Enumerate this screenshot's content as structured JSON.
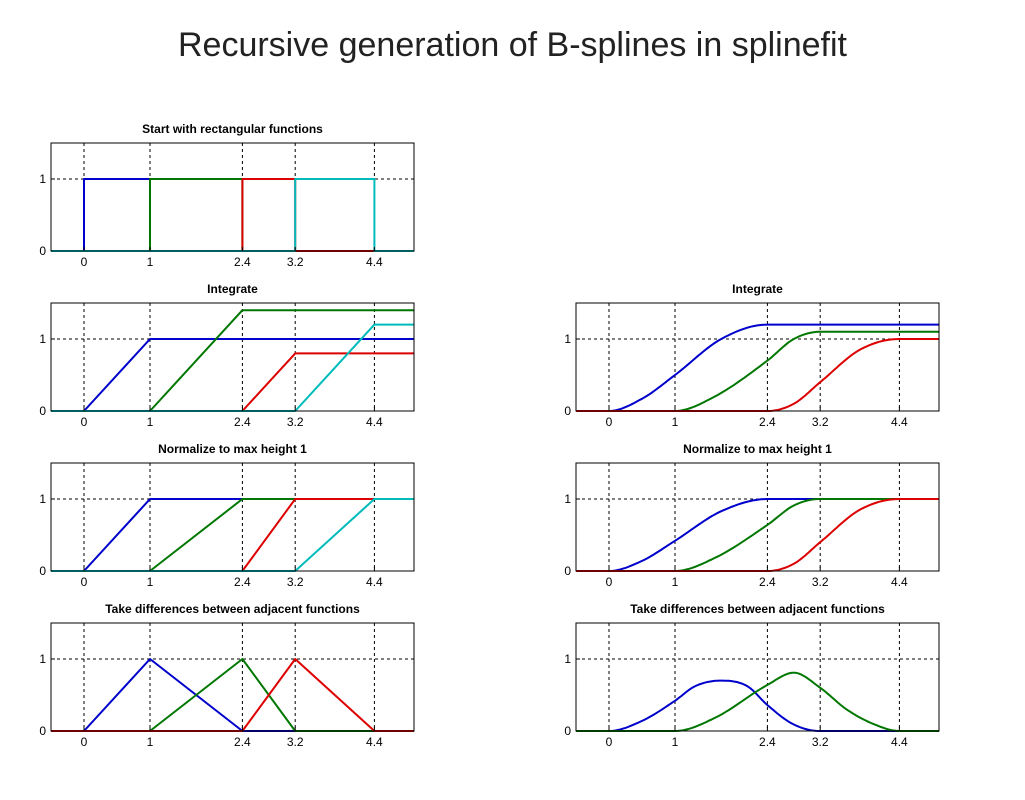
{
  "title": "Recursive generation of B-splines in splinefit",
  "colors": {
    "blue": "#0000cc",
    "green": "#007700",
    "red": "#dd0000",
    "cyan": "#00bbbb",
    "grid": "#000000"
  },
  "chart_data": [
    {
      "title": "Start with rectangular functions",
      "type": "line",
      "xlim": [
        -0.5,
        5.0
      ],
      "ylim": [
        0,
        1.5
      ],
      "xticks": [
        0,
        1,
        2.4,
        3.2,
        4.4
      ],
      "xtick_labels": [
        "0",
        "1",
        "2.4",
        "3.2",
        "4.4"
      ],
      "yticks": [
        0,
        1
      ],
      "ytick_labels": [
        "0",
        "1"
      ],
      "grid": true,
      "series": [
        {
          "color": "#0000cc",
          "x": [
            -0.5,
            0,
            0,
            1,
            1,
            5.0
          ],
          "y": [
            0,
            0,
            1,
            1,
            0,
            0
          ]
        },
        {
          "color": "#007700",
          "x": [
            -0.5,
            1,
            1,
            2.4,
            2.4,
            5.0
          ],
          "y": [
            0,
            0,
            1,
            1,
            0,
            0
          ]
        },
        {
          "color": "#dd0000",
          "x": [
            -0.5,
            2.4,
            2.4,
            3.2,
            3.2,
            5.0
          ],
          "y": [
            0,
            0,
            1,
            1,
            0,
            0
          ]
        },
        {
          "color": "#00bbbb",
          "x": [
            -0.5,
            3.2,
            3.2,
            4.4,
            4.4,
            5.0
          ],
          "y": [
            0,
            0,
            1,
            1,
            0,
            0
          ]
        }
      ]
    },
    {
      "title": "Integrate",
      "type": "line",
      "xlim": [
        -0.5,
        5.0
      ],
      "ylim": [
        0,
        1.5
      ],
      "xticks": [
        0,
        1,
        2.4,
        3.2,
        4.4
      ],
      "xtick_labels": [
        "0",
        "1",
        "2.4",
        "3.2",
        "4.4"
      ],
      "yticks": [
        0,
        1
      ],
      "ytick_labels": [
        "0",
        "1"
      ],
      "grid": true,
      "series": [
        {
          "color": "#0000cc",
          "x": [
            -0.5,
            0,
            1,
            5.0
          ],
          "y": [
            0,
            0,
            1,
            1
          ]
        },
        {
          "color": "#007700",
          "x": [
            -0.5,
            1,
            2.4,
            5.0
          ],
          "y": [
            0,
            0,
            1.4,
            1.4
          ]
        },
        {
          "color": "#dd0000",
          "x": [
            -0.5,
            2.4,
            3.2,
            5.0
          ],
          "y": [
            0,
            0,
            0.8,
            0.8
          ]
        },
        {
          "color": "#00bbbb",
          "x": [
            -0.5,
            3.2,
            4.4,
            5.0
          ],
          "y": [
            0,
            0,
            1.2,
            1.2
          ]
        }
      ]
    },
    {
      "title": "Normalize to max height 1",
      "type": "line",
      "xlim": [
        -0.5,
        5.0
      ],
      "ylim": [
        0,
        1.5
      ],
      "xticks": [
        0,
        1,
        2.4,
        3.2,
        4.4
      ],
      "xtick_labels": [
        "0",
        "1",
        "2.4",
        "3.2",
        "4.4"
      ],
      "yticks": [
        0,
        1
      ],
      "ytick_labels": [
        "0",
        "1"
      ],
      "grid": true,
      "series": [
        {
          "color": "#0000cc",
          "x": [
            -0.5,
            0,
            1,
            5.0
          ],
          "y": [
            0,
            0,
            1,
            1
          ]
        },
        {
          "color": "#007700",
          "x": [
            -0.5,
            1,
            2.4,
            5.0
          ],
          "y": [
            0,
            0,
            1,
            1
          ]
        },
        {
          "color": "#dd0000",
          "x": [
            -0.5,
            2.4,
            3.2,
            5.0
          ],
          "y": [
            0,
            0,
            1,
            1
          ]
        },
        {
          "color": "#00bbbb",
          "x": [
            -0.5,
            3.2,
            4.4,
            5.0
          ],
          "y": [
            0,
            0,
            1,
            1
          ]
        }
      ]
    },
    {
      "title": "Take differences between adjacent functions",
      "type": "line",
      "xlim": [
        -0.5,
        5.0
      ],
      "ylim": [
        0,
        1.5
      ],
      "xticks": [
        0,
        1,
        2.4,
        3.2,
        4.4
      ],
      "xtick_labels": [
        "0",
        "1",
        "2.4",
        "3.2",
        "4.4"
      ],
      "yticks": [
        0,
        1
      ],
      "ytick_labels": [
        "0",
        "1"
      ],
      "grid": true,
      "series": [
        {
          "color": "#0000cc",
          "x": [
            -0.5,
            0,
            1,
            2.4,
            5.0
          ],
          "y": [
            0,
            0,
            1,
            0,
            0
          ]
        },
        {
          "color": "#007700",
          "x": [
            -0.5,
            1,
            2.4,
            3.2,
            5.0
          ],
          "y": [
            0,
            0,
            1,
            0,
            0
          ]
        },
        {
          "color": "#dd0000",
          "x": [
            -0.5,
            2.4,
            3.2,
            4.4,
            5.0
          ],
          "y": [
            0,
            0,
            1,
            0,
            0
          ]
        }
      ]
    },
    {
      "title": "Integrate",
      "type": "line",
      "xlim": [
        -0.5,
        5.0
      ],
      "ylim": [
        0,
        1.5
      ],
      "xticks": [
        0,
        1,
        2.4,
        3.2,
        4.4
      ],
      "xtick_labels": [
        "0",
        "1",
        "2.4",
        "3.2",
        "4.4"
      ],
      "yticks": [
        0,
        1
      ],
      "ytick_labels": [
        "0",
        "1"
      ],
      "grid": true,
      "series": [
        {
          "color": "#0000cc",
          "x": [
            -0.5,
            0,
            0.5,
            1,
            1.7,
            2.4,
            5.0
          ],
          "y": [
            0,
            0,
            0.17,
            0.5,
            1.0,
            1.2,
            1.2
          ]
        },
        {
          "color": "#007700",
          "x": [
            -0.5,
            1,
            1.6,
            2.4,
            2.8,
            3.2,
            5.0
          ],
          "y": [
            0,
            0,
            0.2,
            0.7,
            1.0,
            1.1,
            1.1
          ]
        },
        {
          "color": "#dd0000",
          "x": [
            -0.5,
            2.4,
            2.8,
            3.2,
            3.8,
            4.4,
            5.0
          ],
          "y": [
            0,
            0,
            0.1,
            0.4,
            0.85,
            1.0,
            1.0
          ]
        }
      ]
    },
    {
      "title": "Normalize to max height 1",
      "type": "line",
      "xlim": [
        -0.5,
        5.0
      ],
      "ylim": [
        0,
        1.5
      ],
      "xticks": [
        0,
        1,
        2.4,
        3.2,
        4.4
      ],
      "xtick_labels": [
        "0",
        "1",
        "2.4",
        "3.2",
        "4.4"
      ],
      "yticks": [
        0,
        1
      ],
      "ytick_labels": [
        "0",
        "1"
      ],
      "grid": true,
      "series": [
        {
          "color": "#0000cc",
          "x": [
            -0.5,
            0,
            0.5,
            1,
            1.7,
            2.4,
            5.0
          ],
          "y": [
            0,
            0,
            0.14,
            0.42,
            0.83,
            1.0,
            1.0
          ]
        },
        {
          "color": "#007700",
          "x": [
            -0.5,
            1,
            1.6,
            2.4,
            2.8,
            3.2,
            5.0
          ],
          "y": [
            0,
            0,
            0.18,
            0.64,
            0.91,
            1.0,
            1.0
          ]
        },
        {
          "color": "#dd0000",
          "x": [
            -0.5,
            2.4,
            2.8,
            3.2,
            3.8,
            4.4,
            5.0
          ],
          "y": [
            0,
            0,
            0.1,
            0.4,
            0.85,
            1.0,
            1.0
          ]
        }
      ]
    },
    {
      "title": "Take differences between adjacent functions",
      "type": "line",
      "xlim": [
        -0.5,
        5.0
      ],
      "ylim": [
        0,
        1.5
      ],
      "xticks": [
        0,
        1,
        2.4,
        3.2,
        4.4
      ],
      "xtick_labels": [
        "0",
        "1",
        "2.4",
        "3.2",
        "4.4"
      ],
      "yticks": [
        0,
        1
      ],
      "ytick_labels": [
        "0",
        "1"
      ],
      "grid": true,
      "series": [
        {
          "color": "#0000cc",
          "x": [
            -0.5,
            0,
            0.5,
            1,
            1.3,
            1.7,
            2.1,
            2.4,
            2.8,
            3.2,
            5.0
          ],
          "y": [
            0,
            0,
            0.14,
            0.42,
            0.62,
            0.7,
            0.62,
            0.36,
            0.09,
            0,
            0
          ]
        },
        {
          "color": "#007700",
          "x": [
            -0.5,
            1,
            1.6,
            2.4,
            2.8,
            3.2,
            3.6,
            4.0,
            4.4,
            5.0
          ],
          "y": [
            0,
            0,
            0.18,
            0.64,
            0.81,
            0.6,
            0.3,
            0.1,
            0,
            0
          ]
        }
      ]
    }
  ]
}
